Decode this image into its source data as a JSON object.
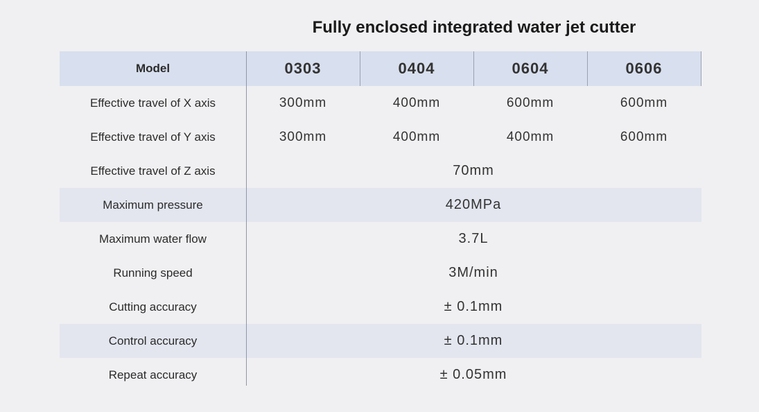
{
  "title": "Fully enclosed integrated water jet cutter",
  "table": {
    "header": {
      "label": "Model",
      "models": [
        "0303",
        "0404",
        "0604",
        "0606"
      ]
    },
    "rows": [
      {
        "label": "Effective travel of X axis",
        "values": [
          "300mm",
          "400mm",
          "600mm",
          "600mm"
        ]
      },
      {
        "label": "Effective travel of Y axis",
        "values": [
          "300mm",
          "400mm",
          "400mm",
          "600mm"
        ]
      },
      {
        "label": "Effective travel of Z axis",
        "value": "70mm"
      },
      {
        "label": "Maximum pressure",
        "value": "420MPa"
      },
      {
        "label": "Maximum water flow",
        "value": "3.7L"
      },
      {
        "label": "Running speed",
        "value": "3M/min"
      },
      {
        "label": "Cutting accuracy",
        "value": "± 0.1mm"
      },
      {
        "label": "Control accuracy",
        "value": "± 0.1mm"
      },
      {
        "label": "Repeat accuracy",
        "value": "± 0.05mm"
      }
    ]
  }
}
